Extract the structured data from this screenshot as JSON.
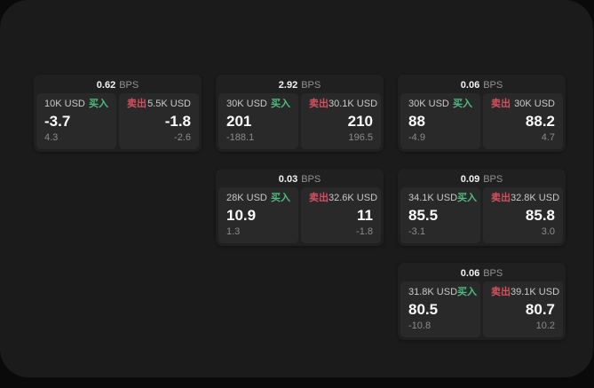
{
  "colors": {
    "buy_accent": "#4dbd7d",
    "sell_accent": "#d5505e",
    "panel_bg": "#1b1b1c",
    "card_bg": "#202021",
    "pane_bg": "#29292a"
  },
  "cards": [
    {
      "bps": "0.62",
      "bps_unit": "BPS",
      "buy": {
        "amount": "10K USD",
        "tag": "买入",
        "value": "-3.7",
        "change": "4.3"
      },
      "sell": {
        "tag": "卖出",
        "amount": "5.5K USD",
        "value": "-1.8",
        "change": "-2.6"
      }
    },
    {
      "bps": "2.92",
      "bps_unit": "BPS",
      "buy": {
        "amount": "30K USD",
        "tag": "买入",
        "value": "201",
        "change": "-188.1"
      },
      "sell": {
        "tag": "卖出",
        "amount": "30.1K USD",
        "value": "210",
        "change": "196.5"
      }
    },
    {
      "bps": "0.06",
      "bps_unit": "BPS",
      "buy": {
        "amount": "30K USD",
        "tag": "买入",
        "value": "88",
        "change": "-4.9"
      },
      "sell": {
        "tag": "卖出",
        "amount": "30K USD",
        "value": "88.2",
        "change": "4.7"
      }
    },
    {
      "bps": "0.03",
      "bps_unit": "BPS",
      "buy": {
        "amount": "28K USD",
        "tag": "买入",
        "value": "10.9",
        "change": "1.3"
      },
      "sell": {
        "tag": "卖出",
        "amount": "32.6K USD",
        "value": "11",
        "change": "-1.8"
      }
    },
    {
      "bps": "0.09",
      "bps_unit": "BPS",
      "buy": {
        "amount": "34.1K USD",
        "tag": "买入",
        "value": "85.5",
        "change": "-3.1"
      },
      "sell": {
        "tag": "卖出",
        "amount": "32.8K USD",
        "value": "85.8",
        "change": "3.0"
      }
    },
    {
      "bps": "0.06",
      "bps_unit": "BPS",
      "buy": {
        "amount": "31.8K USD",
        "tag": "买入",
        "value": "80.5",
        "change": "-10.8"
      },
      "sell": {
        "tag": "卖出",
        "amount": "39.1K USD",
        "value": "80.7",
        "change": "10.2"
      }
    }
  ]
}
